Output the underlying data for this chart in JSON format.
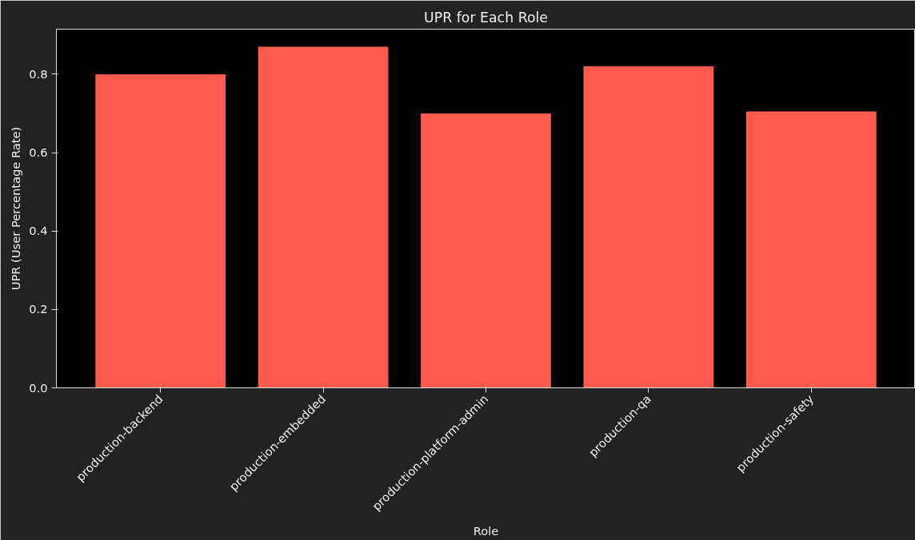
{
  "chart_data": {
    "type": "bar",
    "title": "UPR for Each Role",
    "xlabel": "Role",
    "ylabel": "UPR (User Percentage Rate)",
    "categories": [
      "production-backend",
      "production-embedded",
      "production-platform-admin",
      "production-qa",
      "production-safety"
    ],
    "values": [
      0.8,
      0.87,
      0.7,
      0.82,
      0.705
    ],
    "color": "#ff5a4e",
    "ylim": [
      0,
      0.915
    ],
    "yticks": [
      {
        "value": 0,
        "label": "0.0"
      },
      {
        "value": 0.2,
        "label": "0.2"
      },
      {
        "value": 0.4,
        "label": "0.4"
      },
      {
        "value": 0.6,
        "label": "0.6"
      },
      {
        "value": 0.8,
        "label": "0.8"
      }
    ],
    "grid": false,
    "legend": false
  }
}
